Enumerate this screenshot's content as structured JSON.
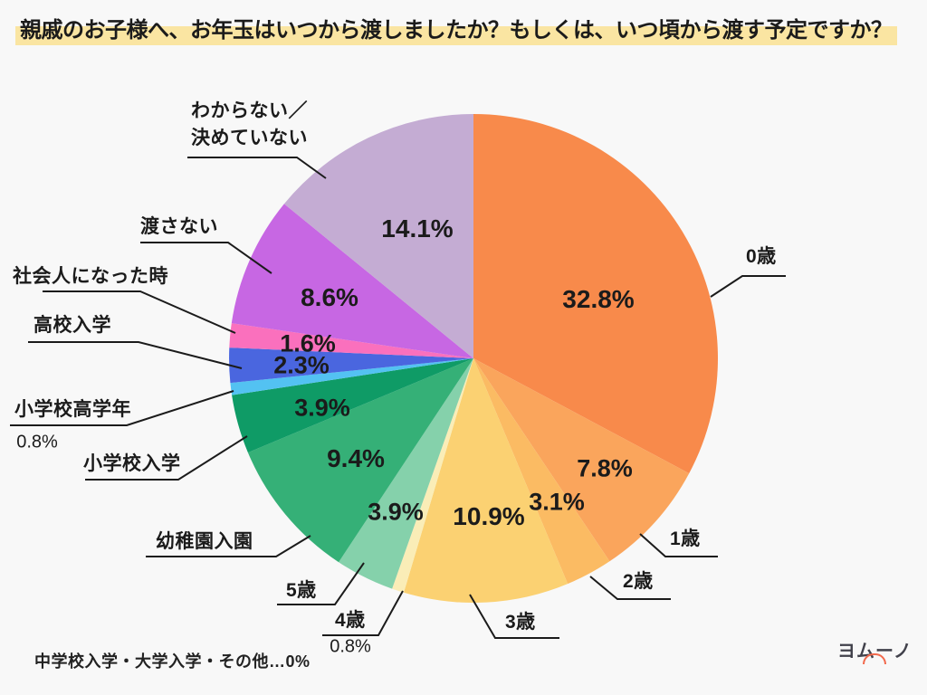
{
  "title": "親戚のお子様へ、お年玉はいつから渡しましたか？もしくは、いつ頃から渡す予定ですか？",
  "footnote": "中学校入学・大学入学・その他…0%",
  "logo": {
    "text": "ヨムーノ"
  },
  "colors": {
    "background": "#F8F8F8",
    "text": "#1B1B1B",
    "title_highlight": "#FAE5A2",
    "leader_line": "#1B1B1B",
    "logo_text": "#41414B",
    "logo_accent": "#F2694C"
  },
  "chart_data": {
    "type": "pie",
    "title": "親戚のお子様へ、お年玉はいつから渡しましたか？もしくは、いつ頃から渡す予定ですか？",
    "direction": "clockwise",
    "start_angle_deg": 0,
    "legend_position": "none",
    "labels_position": "outside-with-leader-lines",
    "slices": [
      {
        "label": "0歳",
        "value": 32.8,
        "pct_label": "32.8%",
        "color": "#F88A4B"
      },
      {
        "label": "1歳",
        "value": 7.8,
        "pct_label": "7.8%",
        "color": "#FAA55C"
      },
      {
        "label": "2歳",
        "value": 3.1,
        "pct_label": "3.1%",
        "color": "#FBBB63"
      },
      {
        "label": "3歳",
        "value": 10.9,
        "pct_label": "10.9%",
        "color": "#FBD172"
      },
      {
        "label": "4歳",
        "value": 0.8,
        "pct_label": "0.8%",
        "color": "#FAEDB7"
      },
      {
        "label": "5歳",
        "value": 3.9,
        "pct_label": "3.9%",
        "color": "#85D1AB"
      },
      {
        "label": "幼稚園入園",
        "value": 9.4,
        "pct_label": "9.4%",
        "color": "#35B077"
      },
      {
        "label": "小学校入学",
        "value": 3.9,
        "pct_label": "3.9%",
        "color": "#0F9B66"
      },
      {
        "label": "小学校高学年",
        "value": 0.8,
        "pct_label": "0.8%",
        "color": "#53C2F2"
      },
      {
        "label": "高校入学",
        "value": 2.3,
        "pct_label": "2.3%",
        "color": "#4A66DF"
      },
      {
        "label": "社会人になった時",
        "value": 1.6,
        "pct_label": "1.6%",
        "color": "#FA70BD"
      },
      {
        "label": "渡さない",
        "value": 8.6,
        "pct_label": "8.6%",
        "color": "#C767E3"
      },
      {
        "label": "わからない／\n決めていない",
        "value": 14.1,
        "pct_label": "14.1%",
        "color": "#C4ACD3"
      }
    ],
    "note": "中学校入学・大学入学・その他…0%"
  }
}
